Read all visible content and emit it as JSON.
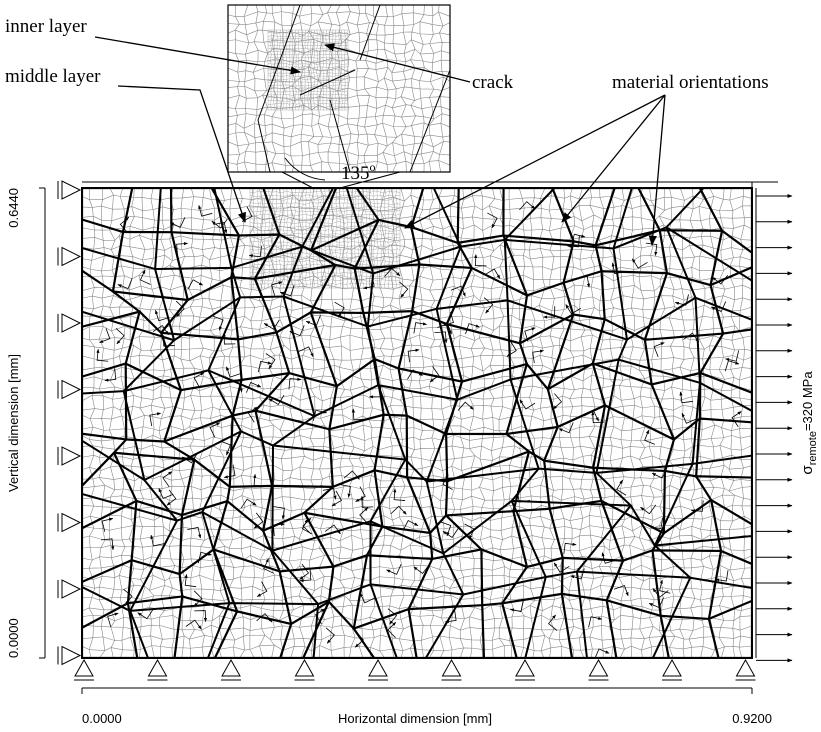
{
  "annotations": {
    "inner_layer": "inner layer",
    "middle_layer": "middle layer",
    "crack": "crack",
    "material_orientations": "material orientations",
    "angle": {
      "value": "135",
      "unit": "o"
    }
  },
  "axes": {
    "vertical": {
      "label": "Vertical dimension [mm]",
      "min": "0.0000",
      "max": "0.6440"
    },
    "horizontal": {
      "label": "Horizontal dimension [mm]",
      "min": "0.0000",
      "max": "0.9200"
    }
  },
  "load": {
    "symbol": "σ",
    "subscript": "remote",
    "value": "=320 MPa"
  }
}
